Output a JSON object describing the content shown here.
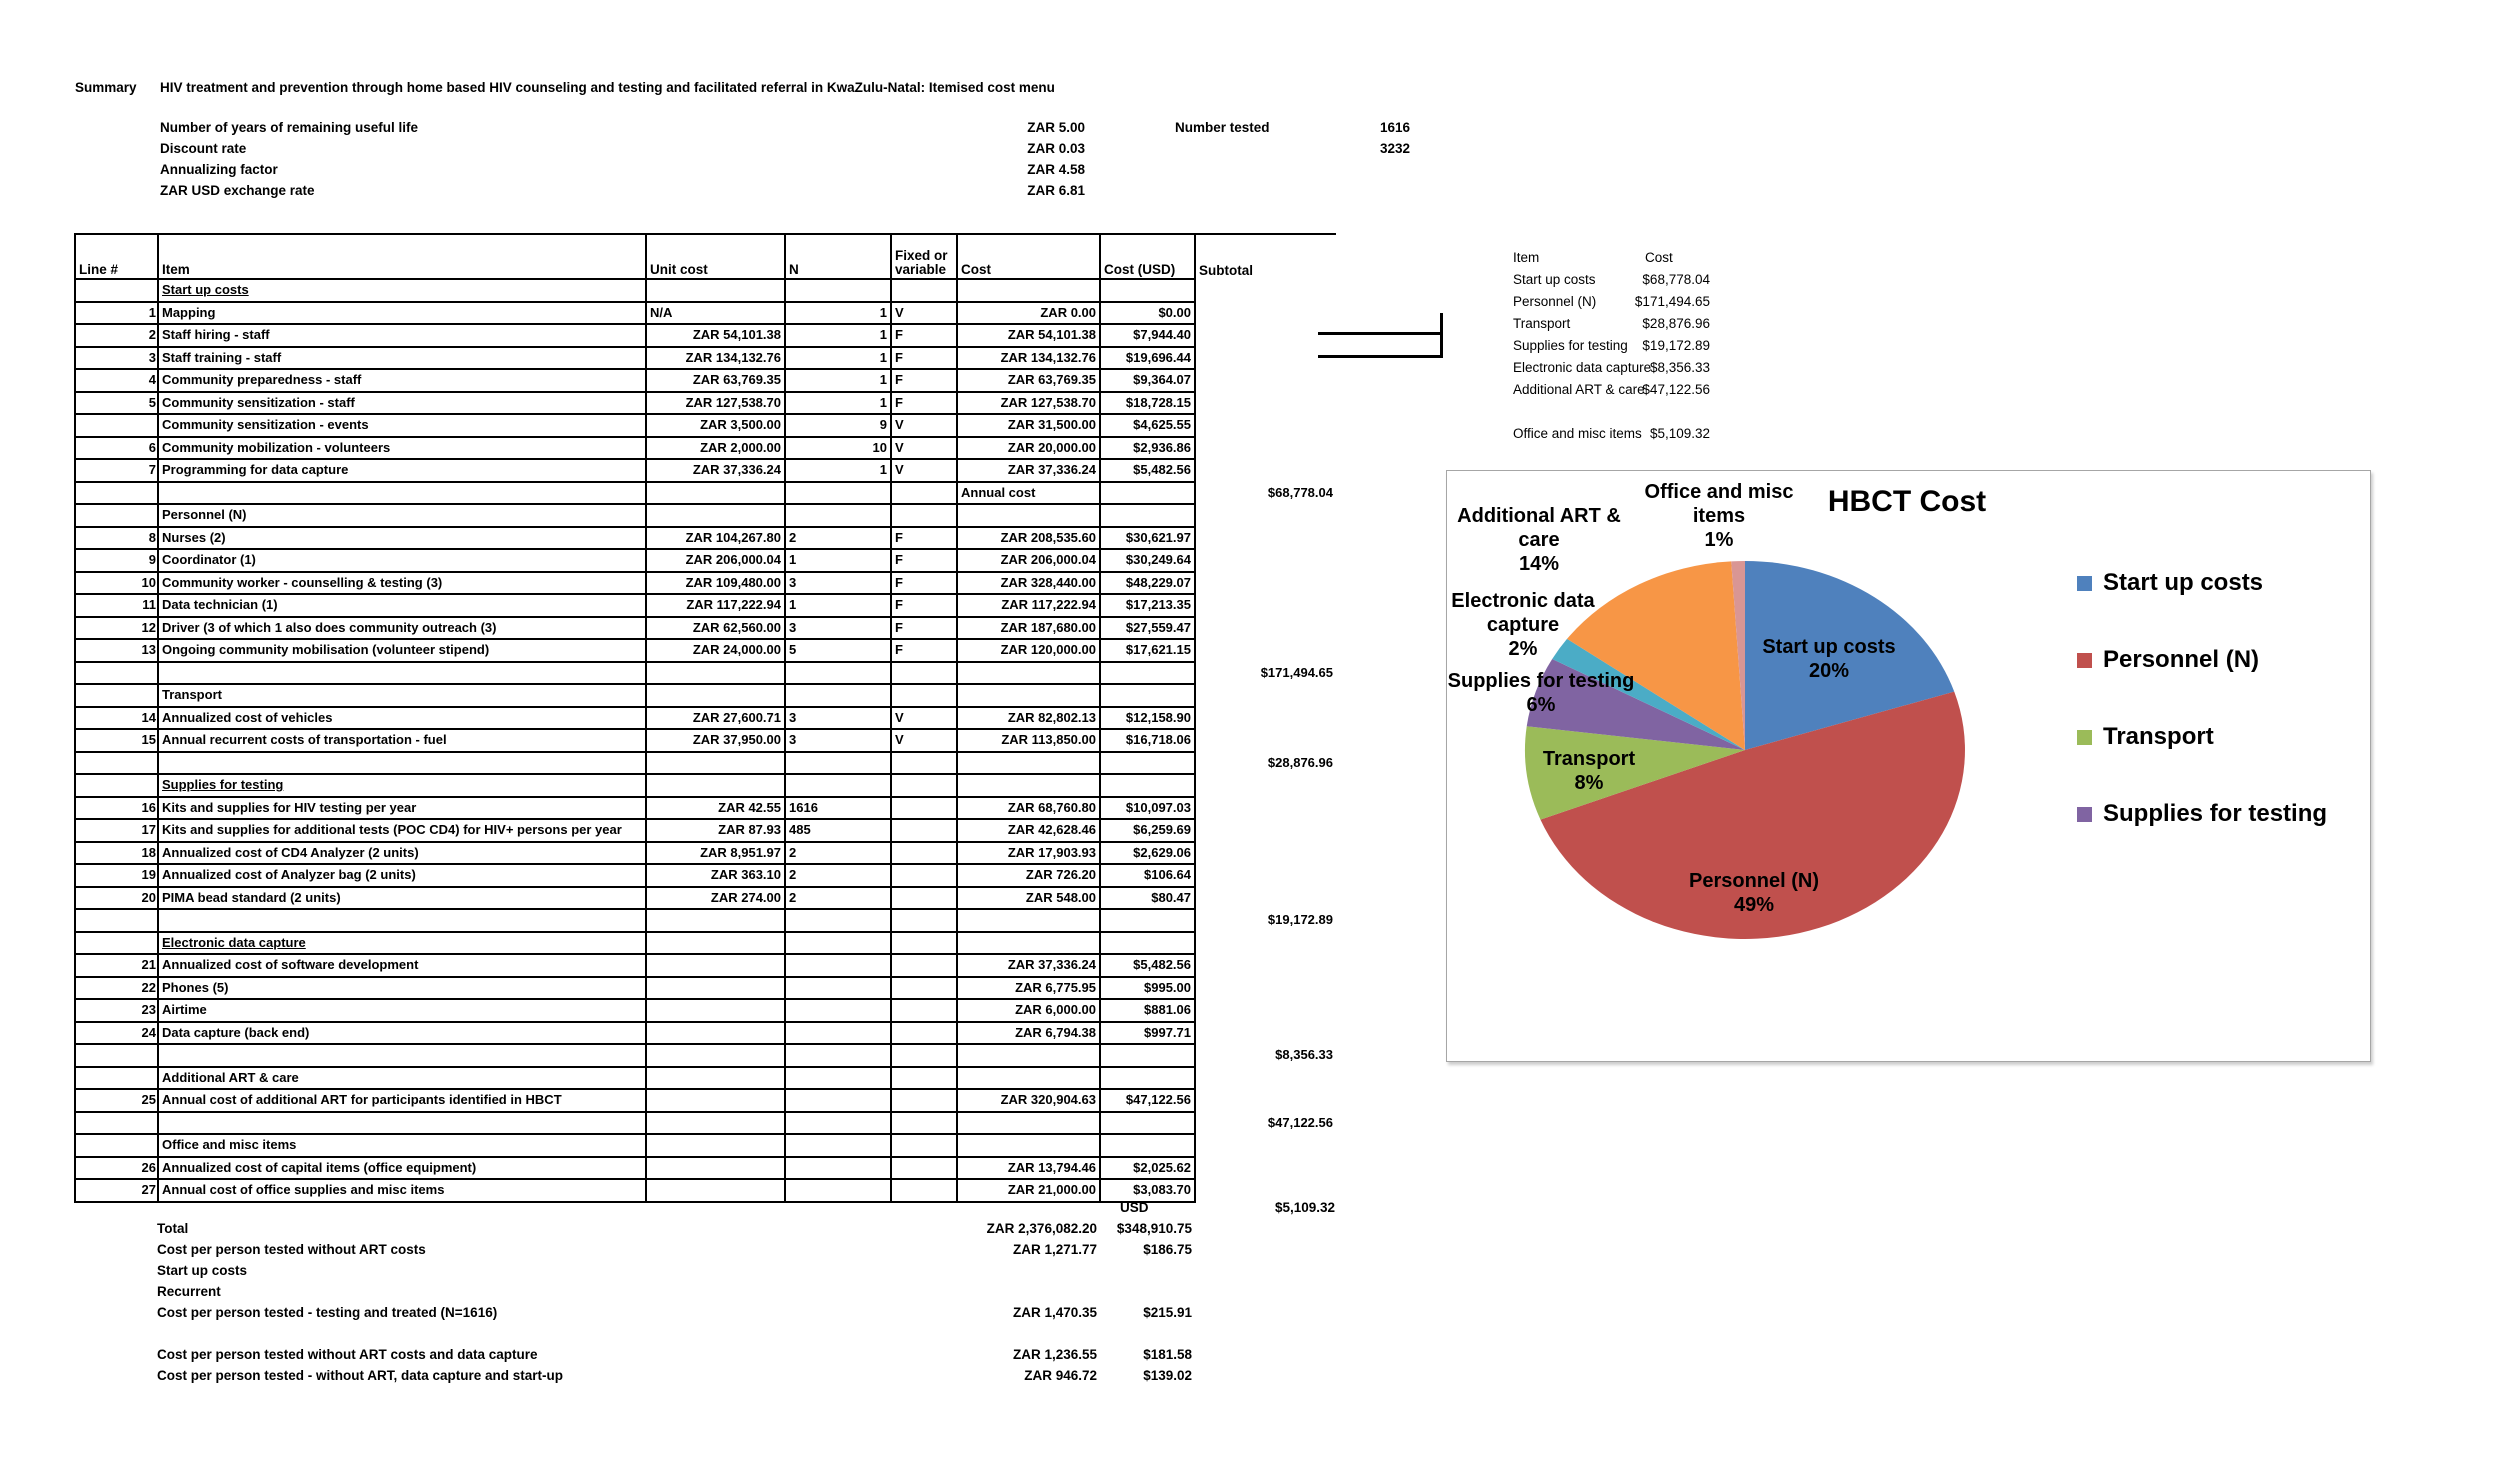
{
  "header": {
    "summary_label": "Summary",
    "title": "HIV treatment and prevention through home based HIV counseling and testing and facilitated referral in KwaZulu-Natal: Itemised cost menu"
  },
  "params": {
    "rows": [
      {
        "label": "Number of years of remaining useful life",
        "value": "ZAR 5.00"
      },
      {
        "label": "Discount rate",
        "value": "ZAR 0.03"
      },
      {
        "label": "Annualizing factor",
        "value": "ZAR 4.58"
      },
      {
        "label": "ZAR USD exchange rate",
        "value": "ZAR 6.81"
      }
    ],
    "number_tested": {
      "label": "Number tested",
      "values": [
        "1616",
        "3232"
      ]
    }
  },
  "table": {
    "headers": {
      "line": "Line #",
      "item": "Item",
      "unit": "Unit cost",
      "n": "N",
      "fv_line1": "Fixed or",
      "fv_line2": "variable",
      "cost": "Cost",
      "usd": "Cost (USD)",
      "subtotal": "Subtotal"
    },
    "rows": [
      {
        "style": "section-u",
        "item": "Start up costs"
      },
      {
        "style": "data",
        "line": "1",
        "item": "Mapping",
        "unit": "N/A",
        "n": "1",
        "fv": "V",
        "cost": "ZAR 0.00",
        "usd": "$0.00"
      },
      {
        "style": "data",
        "line": "2",
        "item": "Staff hiring - staff",
        "unit": "ZAR 54,101.38",
        "n": "1",
        "fv": "F",
        "cost": "ZAR 54,101.38",
        "usd": "$7,944.40"
      },
      {
        "style": "data",
        "line": "3",
        "item": "Staff training - staff",
        "unit": "ZAR 134,132.76",
        "n": "1",
        "fv": "F",
        "cost": "ZAR 134,132.76",
        "usd": "$19,696.44"
      },
      {
        "style": "data",
        "line": "4",
        "item": "Community preparedness - staff",
        "unit": "ZAR 63,769.35",
        "n": "1",
        "fv": "F",
        "cost": "ZAR 63,769.35",
        "usd": "$9,364.07"
      },
      {
        "style": "data",
        "line": "5",
        "item": "Community sensitization - staff",
        "unit": "ZAR 127,538.70",
        "n": "1",
        "fv": "F",
        "cost": "ZAR 127,538.70",
        "usd": "$18,728.15"
      },
      {
        "style": "data",
        "line": "",
        "item": "Community sensitization - events",
        "unit": "ZAR 3,500.00",
        "n": "9",
        "fv": "V",
        "cost": "ZAR 31,500.00",
        "usd": "$4,625.55"
      },
      {
        "style": "data",
        "line": "6",
        "item": "Community mobilization - volunteers",
        "unit": "ZAR 2,000.00",
        "n": "10",
        "fv": "V",
        "cost": "ZAR 20,000.00",
        "usd": "$2,936.86"
      },
      {
        "style": "data",
        "line": "7",
        "item": "Programming for data capture",
        "unit": "ZAR 37,336.24",
        "n": "1",
        "fv": "V",
        "cost": "ZAR 37,336.24",
        "usd": "$5,482.56"
      },
      {
        "style": "blank",
        "cost": "Annual cost",
        "subtotal": "$68,778.04"
      },
      {
        "style": "section",
        "item": "Personnel (N)"
      },
      {
        "style": "data",
        "line": "8",
        "item": "Nurses (2)",
        "unit": "ZAR 104,267.80",
        "n": "2",
        "fv": "F",
        "cost": "ZAR 208,535.60",
        "usd": "$30,621.97"
      },
      {
        "style": "data",
        "line": "9",
        "item": "Coordinator (1)",
        "unit": "ZAR 206,000.04",
        "n": "1",
        "fv": "F",
        "cost": "ZAR 206,000.04",
        "usd": "$30,249.64"
      },
      {
        "style": "data",
        "line": "10",
        "item": "Community worker - counselling & testing (3)",
        "unit": "ZAR 109,480.00",
        "n": "3",
        "fv": "F",
        "cost": "ZAR 328,440.00",
        "usd": "$48,229.07"
      },
      {
        "style": "data",
        "line": "11",
        "item": "Data technician (1)",
        "unit": "ZAR 117,222.94",
        "n": "1",
        "fv": "F",
        "cost": "ZAR 117,222.94",
        "usd": "$17,213.35"
      },
      {
        "style": "data",
        "line": "12",
        "item": "Driver (3 of which 1 also does community outreach (3)",
        "unit": "ZAR 62,560.00",
        "n": "3",
        "fv": "F",
        "cost": "ZAR 187,680.00",
        "usd": "$27,559.47"
      },
      {
        "style": "data",
        "line": "13",
        "item": "Ongoing community mobilisation (volunteer stipend)",
        "unit": "ZAR 24,000.00",
        "n": "5",
        "fv": "F",
        "cost": "ZAR 120,000.00",
        "usd": "$17,621.15"
      },
      {
        "style": "blank",
        "subtotal": "$171,494.65"
      },
      {
        "style": "section",
        "item": "Transport"
      },
      {
        "style": "data",
        "line": "14",
        "item": "Annualized cost of vehicles",
        "unit": "ZAR 27,600.71",
        "n": "3",
        "fv": "V",
        "cost": "ZAR 82,802.13",
        "usd": "$12,158.90"
      },
      {
        "style": "data",
        "line": "15",
        "item": "Annual recurrent costs of transportation - fuel",
        "unit": "ZAR 37,950.00",
        "n": "3",
        "fv": "V",
        "cost": "ZAR 113,850.00",
        "usd": "$16,718.06"
      },
      {
        "style": "blank",
        "subtotal": "$28,876.96"
      },
      {
        "style": "section-u",
        "item": "Supplies for testing"
      },
      {
        "style": "data",
        "line": "16",
        "item": "Kits and supplies for HIV testing per year",
        "unit": "ZAR 42.55",
        "n": "1616",
        "fv": "",
        "cost": "ZAR 68,760.80",
        "usd": "$10,097.03"
      },
      {
        "style": "data",
        "line": "17",
        "item": "Kits and supplies for additional tests (POC CD4) for HIV+ persons per year",
        "unit": "ZAR 87.93",
        "n": "485",
        "fv": "",
        "cost": "ZAR 42,628.46",
        "usd": "$6,259.69"
      },
      {
        "style": "data",
        "line": "18",
        "item": "Annualized cost of CD4 Analyzer (2 units)",
        "unit": "ZAR 8,951.97",
        "n": "2",
        "fv": "",
        "cost": "ZAR 17,903.93",
        "usd": "$2,629.06"
      },
      {
        "style": "data",
        "line": "19",
        "item": "Annualized cost of Analyzer bag (2 units)",
        "unit": "ZAR 363.10",
        "n": "2",
        "fv": "",
        "cost": "ZAR 726.20",
        "usd": "$106.64"
      },
      {
        "style": "data",
        "line": "20",
        "item": "PIMA bead standard (2 units)",
        "unit": "ZAR 274.00",
        "n": "2",
        "fv": "",
        "cost": "ZAR 548.00",
        "usd": "$80.47"
      },
      {
        "style": "blank",
        "subtotal": "$19,172.89"
      },
      {
        "style": "section-u",
        "item": "Electronic data capture"
      },
      {
        "style": "data",
        "line": "21",
        "item": "Annualized cost of software development",
        "unit": "",
        "n": "",
        "fv": "",
        "cost": "ZAR 37,336.24",
        "usd": "$5,482.56"
      },
      {
        "style": "data",
        "line": "22",
        "item": "Phones (5)",
        "unit": "",
        "n": "",
        "fv": "",
        "cost": "ZAR 6,775.95",
        "usd": "$995.00"
      },
      {
        "style": "data",
        "line": "23",
        "item": "Airtime",
        "unit": "",
        "n": "",
        "fv": "",
        "cost": "ZAR 6,000.00",
        "usd": "$881.06"
      },
      {
        "style": "data",
        "line": "24",
        "item": "Data capture (back end)",
        "unit": "",
        "n": "",
        "fv": "",
        "cost": "ZAR 6,794.38",
        "usd": "$997.71"
      },
      {
        "style": "blank",
        "subtotal": "$8,356.33"
      },
      {
        "style": "section",
        "item": "Additional ART & care"
      },
      {
        "style": "data",
        "line": "25",
        "item": "Annual cost of additional ART for participants identified in HBCT",
        "unit": "",
        "n": "",
        "fv": "",
        "cost": "ZAR 320,904.63",
        "usd": "$47,122.56"
      },
      {
        "style": "blank",
        "subtotal": "$47,122.56"
      },
      {
        "style": "section",
        "item": "Office and misc items"
      },
      {
        "style": "data",
        "line": "26",
        "item": "Annualized cost of capital items (office equipment)",
        "unit": "",
        "n": "",
        "fv": "",
        "cost": "ZAR 13,794.46",
        "usd": "$2,025.62"
      },
      {
        "style": "data",
        "line": "27",
        "item": "Annual cost of office supplies and misc items",
        "unit": "",
        "n": "",
        "fv": "",
        "cost": "ZAR 21,000.00",
        "usd": "$3,083.70"
      }
    ]
  },
  "bottom_rows": [
    {
      "usd_col": "USD",
      "subtotal": "$5,109.32"
    },
    {
      "label": "Total",
      "zar": "ZAR 2,376,082.20",
      "usd": "$348,910.75"
    },
    {
      "label": "Cost per person tested without ART costs",
      "zar": "ZAR 1,271.77",
      "usd": "$186.75"
    },
    {
      "label": "Start up costs"
    },
    {
      "label": "Recurrent"
    },
    {
      "label": "Cost per person tested - testing and treated (N=1616)",
      "zar": "ZAR 1,470.35",
      "usd": "$215.91"
    },
    {},
    {
      "label": "Cost per person tested without ART costs  and data capture",
      "zar": "ZAR 1,236.55",
      "usd": "$181.58"
    },
    {
      "label": "Cost per person tested - without ART, data capture and start-up",
      "zar": "ZAR 946.72",
      "usd": "$139.02"
    }
  ],
  "side_summary": {
    "item_header": "Item",
    "cost_header": "Cost",
    "rows": [
      {
        "label": "Start up costs",
        "value": "$68,778.04"
      },
      {
        "label": "Personnel (N)",
        "value": "$171,494.65"
      },
      {
        "label": "Transport",
        "value": "$28,876.96"
      },
      {
        "label": "Supplies for testing",
        "value": "$19,172.89"
      },
      {
        "label": "Electronic data capture",
        "value": "$8,356.33"
      },
      {
        "label": "Additional ART & care",
        "value": "$47,122.56"
      },
      {
        "label": "",
        "value": ""
      },
      {
        "label": "Office and misc items",
        "value": "$5,109.32"
      }
    ]
  },
  "chart_data": {
    "type": "pie",
    "title": "HBCT Cost",
    "categories": [
      "Start up costs",
      "Personnel (N)",
      "Transport",
      "Supplies for testing",
      "Electronic data capture",
      "Additional ART & care",
      "Office and misc items"
    ],
    "values": [
      20,
      49,
      8,
      6,
      2,
      14,
      1
    ],
    "colors": [
      "#4F81BD",
      "#C0504D",
      "#9BBB59",
      "#8064A2",
      "#4BACC6",
      "#F79646",
      "#D99694"
    ],
    "slice_labels": [
      {
        "lines": [
          "Start up costs",
          "20%"
        ]
      },
      {
        "lines": [
          "Personnel (N)",
          "49%"
        ]
      },
      {
        "lines": [
          "Transport",
          "8%"
        ]
      },
      {
        "lines": [
          "Supplies for testing",
          "6%"
        ]
      },
      {
        "lines": [
          "Electronic data",
          "capture",
          "2%"
        ]
      },
      {
        "lines": [
          "Additional ART &",
          "care",
          "14%"
        ]
      },
      {
        "lines": [
          "Office and misc",
          "items",
          "1%"
        ]
      }
    ],
    "legend": [
      {
        "label": "Start up costs",
        "color": "#4F81BD"
      },
      {
        "label": "Personnel (N)",
        "color": "#C0504D"
      },
      {
        "label": "Transport",
        "color": "#9BBB59"
      },
      {
        "label": "Supplies for testing",
        "color": "#8064A2"
      }
    ],
    "legend_position": "right"
  }
}
